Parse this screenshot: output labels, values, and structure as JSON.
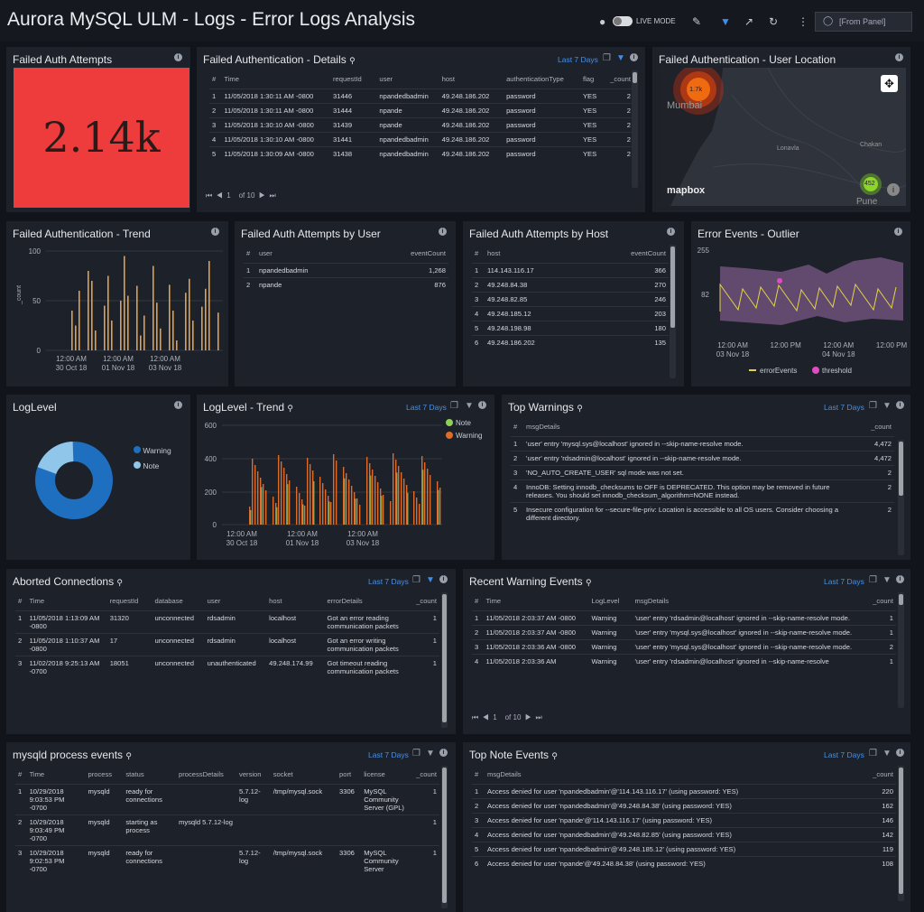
{
  "title": "Aurora MySQL ULM - Logs - Error Logs Analysis",
  "header": {
    "live_mode": "LIVE MODE",
    "from_panel": "[From Panel]"
  },
  "p1": {
    "title": "Failed Auth Attempts",
    "value": "2.14k"
  },
  "p2": {
    "title": "Failed Authentication - Details",
    "range": "Last 7 Days",
    "cols": [
      "#",
      "Time",
      "requestId",
      "user",
      "host",
      "authenticationType",
      "flag",
      "_count"
    ],
    "rows": [
      [
        "1",
        "11/05/2018 1:30:11 AM -0800",
        "31446",
        "npandedbadmin",
        "49.248.186.202",
        "password",
        "YES",
        "2"
      ],
      [
        "2",
        "11/05/2018 1:30:11 AM -0800",
        "31444",
        "npande",
        "49.248.186.202",
        "password",
        "YES",
        "2"
      ],
      [
        "3",
        "11/05/2018 1:30:10 AM -0800",
        "31439",
        "npande",
        "49.248.186.202",
        "password",
        "YES",
        "2"
      ],
      [
        "4",
        "11/05/2018 1:30:10 AM -0800",
        "31441",
        "npandedbadmin",
        "49.248.186.202",
        "password",
        "YES",
        "2"
      ],
      [
        "5",
        "11/05/2018 1:30:09 AM -0800",
        "31438",
        "npandedbadmin",
        "49.248.186.202",
        "password",
        "YES",
        "2"
      ]
    ],
    "pager": {
      "page": "1",
      "of": "of",
      "total": "10"
    }
  },
  "p3": {
    "title": "Failed Authentication - User Location",
    "cluster1": "1.7k",
    "cluster2": "452",
    "city1": "Mumbai",
    "city2": "Lonavla",
    "city3": "Chakan",
    "city4": "Pune",
    "brand": "mapbox"
  },
  "p4": {
    "title": "Failed Authentication - Trend",
    "ylabel": "_count",
    "yticks": [
      "100",
      "50",
      "0"
    ],
    "xticks": [
      [
        "12:00 AM",
        "30 Oct 18"
      ],
      [
        "12:00 AM",
        "01 Nov 18"
      ],
      [
        "12:00 AM",
        "03 Nov 18"
      ]
    ]
  },
  "p5": {
    "title": "Failed Auth Attempts by User",
    "cols": [
      "#",
      "user",
      "eventCount"
    ],
    "rows": [
      [
        "1",
        "npandedbadmin",
        "1,268"
      ],
      [
        "2",
        "npande",
        "876"
      ]
    ]
  },
  "p6": {
    "title": "Failed Auth Attempts by Host",
    "cols": [
      "#",
      "host",
      "eventCount"
    ],
    "rows": [
      [
        "1",
        "114.143.116.17",
        "366"
      ],
      [
        "2",
        "49.248.84.38",
        "270"
      ],
      [
        "3",
        "49.248.82.85",
        "246"
      ],
      [
        "4",
        "49.248.185.12",
        "203"
      ],
      [
        "5",
        "49.248.198.98",
        "180"
      ],
      [
        "6",
        "49.248.186.202",
        "135"
      ]
    ]
  },
  "p7": {
    "title": "Error Events - Outlier",
    "yticks": [
      "255",
      "82"
    ],
    "xticks": [
      [
        "12:00 AM",
        "03 Nov 18"
      ],
      [
        "12:00 PM",
        ""
      ],
      [
        "12:00 AM",
        "04 Nov 18"
      ],
      [
        "12:00 PM",
        ""
      ]
    ],
    "legend": [
      "errorEvents",
      "threshold"
    ]
  },
  "p8": {
    "title": "LogLevel",
    "legend": [
      "Warning",
      "Note"
    ]
  },
  "p9": {
    "title": "LogLevel - Trend",
    "range": "Last 7 Days",
    "yticks": [
      "600",
      "400",
      "200",
      "0"
    ],
    "xticks": [
      [
        "12:00 AM",
        "30 Oct 18"
      ],
      [
        "12:00 AM",
        "01 Nov 18"
      ],
      [
        "12:00 AM",
        "03 Nov 18"
      ]
    ],
    "legend": [
      "Note",
      "Warning"
    ]
  },
  "p10": {
    "title": "Top Warnings",
    "range": "Last 7 Days",
    "cols": [
      "#",
      "msgDetails",
      "_count"
    ],
    "rows": [
      [
        "1",
        "'user' entry 'mysql.sys@localhost' ignored in --skip-name-resolve mode.",
        "4,472"
      ],
      [
        "2",
        "'user' entry 'rdsadmin@localhost' ignored in --skip-name-resolve mode.",
        "4,472"
      ],
      [
        "3",
        "'NO_AUTO_CREATE_USER' sql mode was not set.",
        "2"
      ],
      [
        "4",
        "InnoDB: Setting innodb_checksums to OFF is DEPRECATED. This option may be removed in future releases. You should set innodb_checksum_algorithm=NONE instead.",
        "2"
      ],
      [
        "5",
        "Insecure configuration for --secure-file-priv: Location is accessible to all OS users. Consider choosing a different directory.",
        "2"
      ]
    ]
  },
  "p11": {
    "title": "Aborted Connections",
    "range": "Last 7 Days",
    "cols": [
      "#",
      "Time",
      "requestId",
      "database",
      "user",
      "host",
      "errorDetails",
      "_count"
    ],
    "rows": [
      [
        "1",
        "11/05/2018 1:13:09 AM -0800",
        "31320",
        "unconnected",
        "rdsadmin",
        "localhost",
        "Got an error reading communication packets",
        "1"
      ],
      [
        "2",
        "11/05/2018 1:10:37 AM -0800",
        "17",
        "unconnected",
        "rdsadmin",
        "localhost",
        "Got an error writing communication packets",
        "1"
      ],
      [
        "3",
        "11/02/2018 9:25:13 AM -0700",
        "18051",
        "unconnected",
        "unauthenticated",
        "49.248.174.99",
        "Got timeout reading communication packets",
        "1"
      ]
    ]
  },
  "p12": {
    "title": "Recent Warning Events",
    "range": "Last 7 Days",
    "cols": [
      "#",
      "Time",
      "LogLevel",
      "msgDetails",
      "_count"
    ],
    "rows": [
      [
        "1",
        "11/05/2018 2:03:37 AM -0800",
        "Warning",
        "'user' entry 'rdsadmin@localhost' ignored in --skip-name-resolve mode.",
        "1"
      ],
      [
        "2",
        "11/05/2018 2:03:37 AM -0800",
        "Warning",
        "'user' entry 'mysql.sys@localhost' ignored in --skip-name-resolve mode.",
        "1"
      ],
      [
        "3",
        "11/05/2018 2:03:36 AM -0800",
        "Warning",
        "'user' entry 'mysql.sys@localhost' ignored in --skip-name-resolve mode.",
        "2"
      ],
      [
        "4",
        "11/05/2018 2:03:36 AM",
        "Warning",
        "'user' entry 'rdsadmin@localhost' ignored in --skip-name-resolve",
        "1"
      ]
    ],
    "pager": {
      "page": "1",
      "of": "of",
      "total": "10"
    }
  },
  "p13": {
    "title": "mysqld process events",
    "range": "Last 7 Days",
    "cols": [
      "#",
      "Time",
      "process",
      "status",
      "processDetails",
      "version",
      "socket",
      "port",
      "license",
      "_count"
    ],
    "rows": [
      [
        "1",
        "10/29/2018 9:03:53 PM -0700",
        "mysqld",
        "ready for connections",
        "",
        "5.7.12-log",
        "/tmp/mysql.sock",
        "3306",
        "MySQL Community Server (GPL)",
        "1"
      ],
      [
        "2",
        "10/29/2018 9:03:49 PM -0700",
        "mysqld",
        "starting as process",
        "mysqld 5.7.12-log",
        "",
        "",
        "",
        "",
        "1"
      ],
      [
        "3",
        "10/29/2018 9:02:53 PM -0700",
        "mysqld",
        "ready for connections",
        "",
        "5.7.12-log",
        "/tmp/mysql.sock",
        "3306",
        "MySQL Community Server",
        "1"
      ]
    ]
  },
  "p14": {
    "title": "Top Note Events",
    "range": "Last 7 Days",
    "cols": [
      "#",
      "msgDetails",
      "_count"
    ],
    "rows": [
      [
        "1",
        "Access denied for user 'npandedbadmin'@'114.143.116.17' (using password: YES)",
        "220"
      ],
      [
        "2",
        "Access denied for user 'npandedbadmin'@'49.248.84.38' (using password: YES)",
        "162"
      ],
      [
        "3",
        "Access denied for user 'npande'@'114.143.116.17' (using password: YES)",
        "146"
      ],
      [
        "4",
        "Access denied for user 'npandedbadmin'@'49.248.82.85' (using password: YES)",
        "142"
      ],
      [
        "5",
        "Access denied for user 'npandedbadmin'@'49.248.185.12' (using password: YES)",
        "119"
      ],
      [
        "6",
        "Access denied for user 'npande'@'49.248.84.38' (using password: YES)",
        "108"
      ]
    ]
  },
  "colors": {
    "warning": "#1f6fc0",
    "note": "#8fc6ea",
    "red": "#ee3b3b",
    "orange": "#e0a050",
    "noteGreen": "#8ecf5a",
    "warnOrange": "#e06a2a",
    "outlier": "#6a4f77",
    "accent": "#4a90e2"
  }
}
